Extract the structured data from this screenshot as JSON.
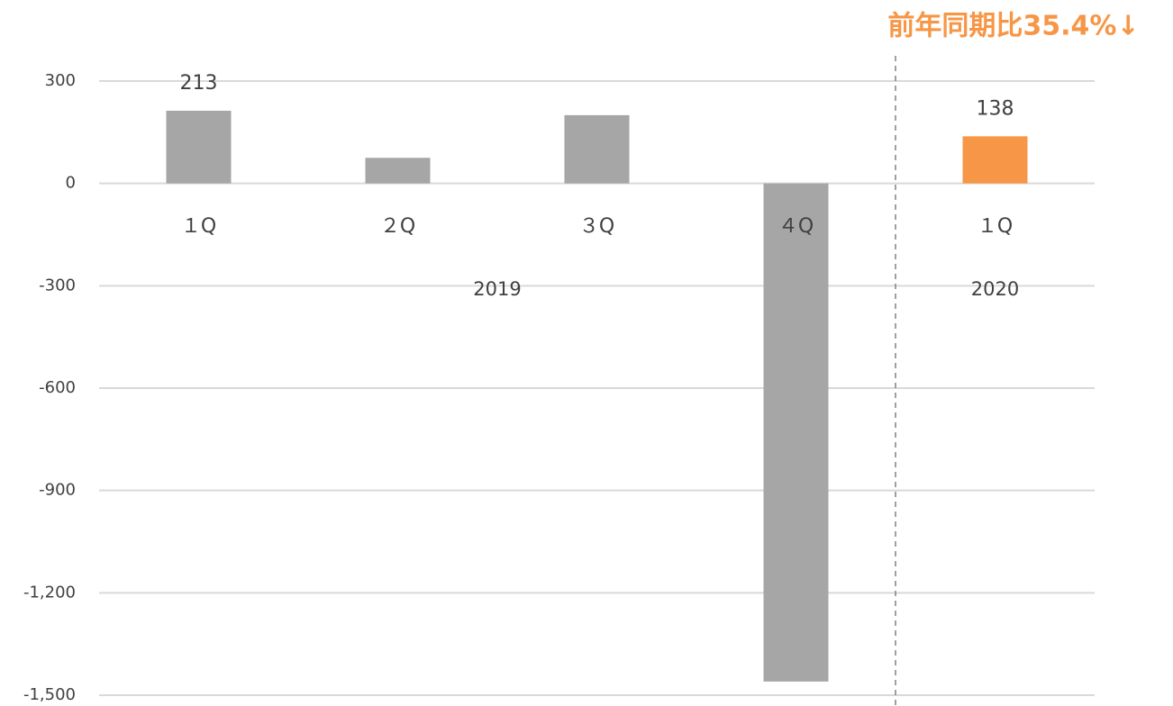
{
  "chart_data": {
    "type": "bar",
    "annotation": "前年同期比35.4%↓",
    "categories": [
      "１Q",
      "２Q",
      "３Q",
      "４Q",
      "１Q"
    ],
    "groups": [
      {
        "label": "2019",
        "count": 4
      },
      {
        "label": "2020",
        "count": 1
      }
    ],
    "values": [
      213,
      75,
      200,
      -1460,
      138
    ],
    "value_labels": [
      "213",
      null,
      null,
      null,
      "138"
    ],
    "colors": [
      "#a6a6a6",
      "#a6a6a6",
      "#a6a6a6",
      "#a6a6a6",
      "#f79646"
    ],
    "annotation_color": "#f79646",
    "ylim": [
      -1500,
      300
    ],
    "yticks": [
      300,
      0,
      {
        "value": -300,
        "label": "-300"
      },
      {
        "value": -600,
        "label": "-600"
      },
      {
        "value": -900,
        "label": "-900"
      },
      {
        "value": -1200,
        "label": "-1,200"
      },
      {
        "value": -1500,
        "label": "-1,500"
      }
    ],
    "grid": true
  }
}
